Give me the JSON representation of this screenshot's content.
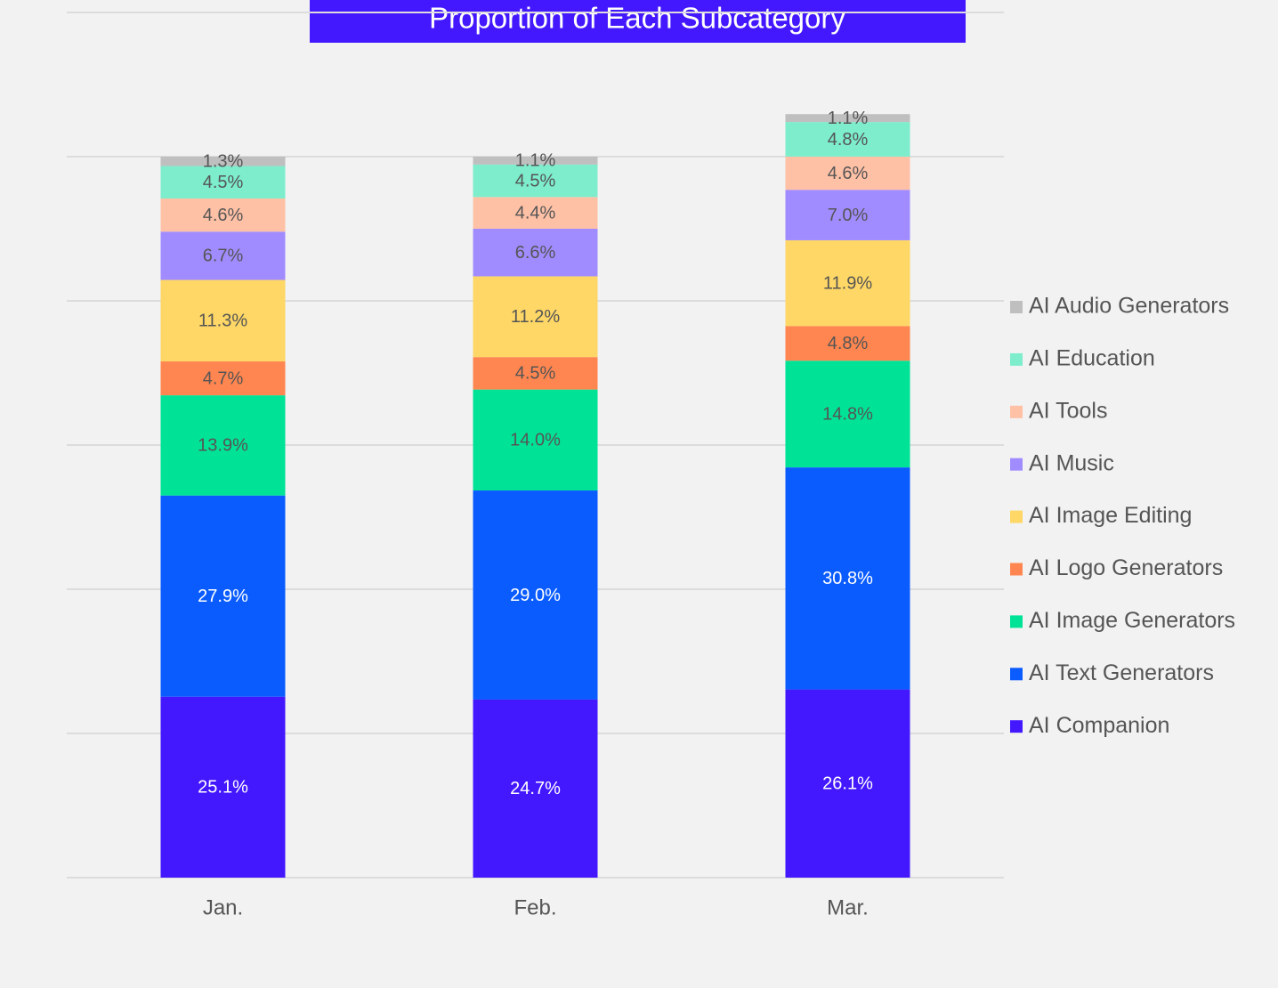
{
  "chart_data": {
    "type": "stacked-bar",
    "title": "Proportion of Each Subcategory",
    "categories": [
      "Jan.",
      "Feb.",
      "Mar."
    ],
    "ylim": [
      0,
      120
    ],
    "yticks": [
      0,
      20,
      40,
      60,
      80,
      100,
      120
    ],
    "grid": true,
    "series": [
      {
        "name": "AI Companion",
        "color": "#4318ff",
        "values": [
          25.1,
          24.7,
          26.1
        ],
        "value_labels": [
          "25.1%",
          "24.7%",
          "26.1%"
        ]
      },
      {
        "name": "AI Text Generators",
        "color": "#0a5cff",
        "values": [
          27.9,
          29.0,
          30.8
        ],
        "value_labels": [
          "27.9%",
          "29.0%",
          "30.8%"
        ]
      },
      {
        "name": "AI Image Generators",
        "color": "#00e396",
        "values": [
          13.9,
          14.0,
          14.8
        ],
        "value_labels": [
          "13.9%",
          "14.0%",
          "14.8%"
        ]
      },
      {
        "name": "AI Logo Generators",
        "color": "#ff8650",
        "values": [
          4.7,
          4.5,
          4.8
        ],
        "value_labels": [
          "4.7%",
          "4.5%",
          "4.8%"
        ]
      },
      {
        "name": "AI Image Editing",
        "color": "#fed766",
        "values": [
          11.3,
          11.2,
          11.9
        ],
        "value_labels": [
          "11.3%",
          "11.2%",
          "11.9%"
        ]
      },
      {
        "name": "AI Music",
        "color": "#a18cff",
        "values": [
          6.7,
          6.6,
          7.0
        ],
        "value_labels": [
          "6.7%",
          "6.6%",
          "7.0%"
        ]
      },
      {
        "name": "AI Tools",
        "color": "#ffc1a6",
        "values": [
          4.6,
          4.4,
          4.6
        ],
        "value_labels": [
          "4.6%",
          "4.4%",
          "4.6%"
        ]
      },
      {
        "name": "AI Education",
        "color": "#7dedcc",
        "values": [
          4.5,
          4.5,
          4.8
        ],
        "value_labels": [
          "4.5%",
          "4.5%",
          "4.8%"
        ]
      },
      {
        "name": "AI Audio Generators",
        "color": "#bfbfbf",
        "values": [
          1.3,
          1.1,
          1.1
        ],
        "value_labels": [
          "1.3%",
          "1.1%",
          "1.1%"
        ]
      }
    ]
  }
}
